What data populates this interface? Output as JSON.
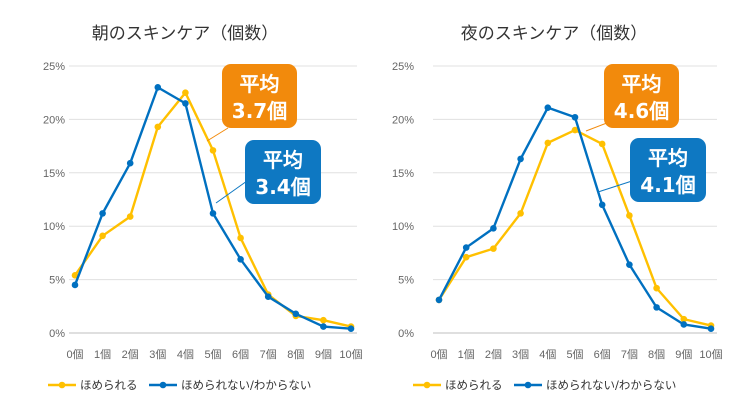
{
  "chart_data": [
    {
      "type": "line",
      "title": "朝のスキンケア（個数）",
      "categories": [
        "0個",
        "1個",
        "2個",
        "3個",
        "4個",
        "5個",
        "6個",
        "7個",
        "8個",
        "9個",
        "10個"
      ],
      "yticks": [
        "0%",
        "5%",
        "10%",
        "15%",
        "20%",
        "25%"
      ],
      "ylim": [
        0,
        25
      ],
      "grid": true,
      "legend_position": "bottom",
      "series": [
        {
          "name": "ほめられる",
          "color": "#FFC000",
          "values": [
            5.4,
            9.1,
            10.9,
            19.3,
            22.5,
            17.1,
            8.9,
            3.6,
            1.6,
            1.2,
            0.6
          ]
        },
        {
          "name": "ほめられない/わからない",
          "color": "#0070C0",
          "values": [
            4.5,
            11.2,
            15.9,
            23.0,
            21.5,
            11.2,
            6.9,
            3.4,
            1.8,
            0.6,
            0.4
          ]
        }
      ],
      "annotations": [
        {
          "label_line1": "平均",
          "label_line2": "3.7個",
          "series": "ほめられる",
          "color": "#F28A0C"
        },
        {
          "label_line1": "平均",
          "label_line2": "3.4個",
          "series": "ほめられない/わからない",
          "color": "#0E78C2"
        }
      ]
    },
    {
      "type": "line",
      "title": "夜のスキンケア（個数）",
      "categories": [
        "0個",
        "1個",
        "2個",
        "3個",
        "4個",
        "5個",
        "6個",
        "7個",
        "8個",
        "9個",
        "10個"
      ],
      "yticks": [
        "0%",
        "5%",
        "10%",
        "15%",
        "20%",
        "25%"
      ],
      "ylim": [
        0,
        25
      ],
      "grid": true,
      "legend_position": "bottom",
      "series": [
        {
          "name": "ほめられる",
          "color": "#FFC000",
          "values": [
            3.1,
            7.1,
            7.9,
            11.2,
            17.8,
            19.0,
            17.7,
            11.0,
            4.2,
            1.3,
            0.7
          ]
        },
        {
          "name": "ほめられない/わからない",
          "color": "#0070C0",
          "values": [
            3.1,
            8.0,
            9.8,
            16.3,
            21.1,
            20.2,
            12.0,
            6.4,
            2.4,
            0.8,
            0.4
          ]
        }
      ],
      "annotations": [
        {
          "label_line1": "平均",
          "label_line2": "4.6個",
          "series": "ほめられる",
          "color": "#F28A0C"
        },
        {
          "label_line1": "平均",
          "label_line2": "4.1個",
          "series": "ほめられない/わからない",
          "color": "#0E78C2"
        }
      ]
    }
  ]
}
